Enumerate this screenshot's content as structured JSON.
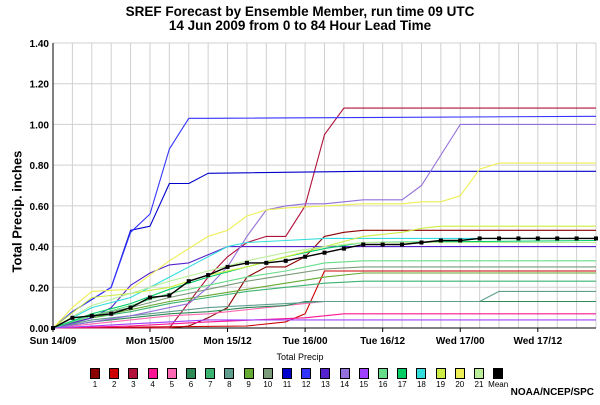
{
  "chart_data": {
    "type": "line",
    "title": "SREF Forecast by Ensemble Member, run time 09 UTC",
    "subtitle": "14 Jun 2009 from 0 to 84 Hour Lead Time",
    "ylabel": "Total Precip. inches",
    "xlabel": "",
    "legend_title": "Total Precip",
    "xlim": [
      0,
      84
    ],
    "ylim": [
      0,
      1.4
    ],
    "yticks": [
      "0.00",
      "0.20",
      "0.40",
      "0.60",
      "0.80",
      "1.00",
      "1.20",
      "1.40"
    ],
    "xticks": [
      {
        "h": 0,
        "label": "Sun 14/09"
      },
      {
        "h": 15,
        "label": "Mon 15/00"
      },
      {
        "h": 27,
        "label": "Mon 15/12"
      },
      {
        "h": 39,
        "label": "Tue 16/00"
      },
      {
        "h": 51,
        "label": "Tue 16/12"
      },
      {
        "h": 63,
        "label": "Wed 17/00"
      },
      {
        "h": 75,
        "label": "Wed 17/12"
      }
    ],
    "grid": true,
    "legend": "bottom",
    "series": [
      {
        "name": "1",
        "color": "#8b0000",
        "x": [
          0,
          6,
          12,
          18,
          21,
          24,
          27,
          30,
          33,
          36,
          39,
          42,
          45,
          48,
          51,
          54,
          57,
          60,
          84
        ],
        "values": [
          0,
          0,
          0,
          0,
          0.01,
          0.05,
          0.1,
          0.25,
          0.3,
          0.3,
          0.35,
          0.45,
          0.47,
          0.48,
          0.48,
          0.48,
          0.48,
          0.48,
          0.48
        ]
      },
      {
        "name": "2",
        "color": "#cc0000",
        "x": [
          0,
          30,
          36,
          39,
          42,
          45,
          48,
          84
        ],
        "values": [
          0,
          0.01,
          0.03,
          0.07,
          0.28,
          0.28,
          0.28,
          0.28
        ]
      },
      {
        "name": "3",
        "color": "#b0103a",
        "x": [
          0,
          18,
          24,
          27,
          30,
          33,
          36,
          39,
          42,
          45,
          48,
          84
        ],
        "values": [
          0,
          0,
          0.25,
          0.35,
          0.42,
          0.45,
          0.45,
          0.6,
          0.95,
          1.08,
          1.08,
          1.08
        ]
      },
      {
        "name": "4",
        "color": "#ff1493",
        "x": [
          0,
          12,
          18,
          24,
          39,
          42,
          45,
          84
        ],
        "values": [
          0,
          0.01,
          0.02,
          0.03,
          0.05,
          0.06,
          0.07,
          0.07
        ]
      },
      {
        "name": "5",
        "color": "#ff69b4",
        "x": [
          0,
          6,
          12,
          18,
          24,
          30,
          36,
          42,
          48,
          84
        ],
        "values": [
          0,
          0.02,
          0.04,
          0.06,
          0.07,
          0.09,
          0.11,
          0.13,
          0.13,
          0.13
        ]
      },
      {
        "name": "6",
        "color": "#2e8b57",
        "x": [
          0,
          6,
          12,
          18,
          24,
          30,
          36,
          39,
          42,
          84
        ],
        "values": [
          0,
          0.03,
          0.05,
          0.07,
          0.08,
          0.1,
          0.11,
          0.13,
          0.13,
          0.13
        ]
      },
      {
        "name": "7",
        "color": "#3cb371",
        "x": [
          0,
          6,
          12,
          18,
          24,
          30,
          36,
          42,
          48,
          84
        ],
        "values": [
          0,
          0.05,
          0.08,
          0.12,
          0.15,
          0.18,
          0.2,
          0.22,
          0.23,
          0.23
        ]
      },
      {
        "name": "8",
        "color": "#5f9e8f",
        "x": [
          0,
          6,
          12,
          18,
          24,
          30,
          36,
          42,
          66,
          69,
          72,
          84
        ],
        "values": [
          0,
          0.04,
          0.06,
          0.08,
          0.1,
          0.11,
          0.12,
          0.13,
          0.13,
          0.18,
          0.18,
          0.18
        ]
      },
      {
        "name": "9",
        "color": "#66aa33",
        "x": [
          0,
          6,
          12,
          18,
          24,
          30,
          36,
          42,
          48,
          84
        ],
        "values": [
          0,
          0.05,
          0.09,
          0.13,
          0.16,
          0.19,
          0.22,
          0.25,
          0.27,
          0.27
        ]
      },
      {
        "name": "10",
        "color": "#7a9a7a",
        "x": [
          0,
          6,
          12,
          18,
          24,
          30,
          36,
          42,
          48,
          84
        ],
        "values": [
          0,
          0.06,
          0.1,
          0.15,
          0.19,
          0.23,
          0.26,
          0.29,
          0.3,
          0.3
        ]
      },
      {
        "name": "11",
        "color": "#0000cc",
        "x": [
          0,
          3,
          6,
          9,
          12,
          15,
          18,
          21,
          24,
          48,
          84
        ],
        "values": [
          0,
          0.08,
          0.14,
          0.2,
          0.48,
          0.5,
          0.71,
          0.71,
          0.76,
          0.77,
          0.77
        ]
      },
      {
        "name": "12",
        "color": "#3333ff",
        "x": [
          0,
          3,
          6,
          9,
          12,
          15,
          18,
          21,
          24,
          84
        ],
        "values": [
          0,
          0.08,
          0.14,
          0.2,
          0.47,
          0.56,
          0.88,
          1.03,
          1.03,
          1.04
        ]
      },
      {
        "name": "13",
        "color": "#5522cc",
        "x": [
          0,
          6,
          9,
          12,
          15,
          18,
          21,
          24,
          27,
          84
        ],
        "values": [
          0,
          0.05,
          0.1,
          0.21,
          0.27,
          0.31,
          0.32,
          0.36,
          0.4,
          0.4
        ]
      },
      {
        "name": "14",
        "color": "#9370db",
        "x": [
          0,
          6,
          12,
          18,
          21,
          24,
          27,
          30,
          33,
          36,
          39,
          42,
          45,
          48,
          54,
          57,
          60,
          63,
          66,
          84
        ],
        "values": [
          0,
          0.03,
          0.06,
          0.1,
          0.12,
          0.2,
          0.3,
          0.45,
          0.58,
          0.6,
          0.61,
          0.61,
          0.62,
          0.63,
          0.63,
          0.7,
          0.85,
          1.0,
          1.0,
          1.0
        ]
      },
      {
        "name": "15",
        "color": "#a040ff",
        "x": [
          0,
          6,
          12,
          18,
          24,
          27,
          84
        ],
        "values": [
          0,
          0.01,
          0.02,
          0.03,
          0.04,
          0.04,
          0.04
        ]
      },
      {
        "name": "16",
        "color": "#66dd88",
        "x": [
          0,
          6,
          12,
          18,
          24,
          30,
          36,
          42,
          48,
          84
        ],
        "values": [
          0,
          0.06,
          0.11,
          0.17,
          0.21,
          0.25,
          0.28,
          0.32,
          0.33,
          0.33
        ]
      },
      {
        "name": "17",
        "color": "#00cc66",
        "x": [
          0,
          6,
          12,
          18,
          24,
          30,
          36,
          42,
          48,
          84
        ],
        "values": [
          0,
          0.07,
          0.12,
          0.19,
          0.25,
          0.3,
          0.35,
          0.39,
          0.42,
          0.43
        ]
      },
      {
        "name": "18",
        "color": "#33dddd",
        "x": [
          0,
          6,
          12,
          18,
          24,
          27,
          30,
          36,
          42,
          48,
          84
        ],
        "values": [
          0,
          0.1,
          0.15,
          0.25,
          0.35,
          0.4,
          0.42,
          0.43,
          0.44,
          0.44,
          0.44
        ]
      },
      {
        "name": "19",
        "color": "#ccee44",
        "x": [
          0,
          6,
          12,
          18,
          24,
          30,
          36,
          42,
          48,
          54,
          57,
          60,
          63,
          66,
          84
        ],
        "values": [
          0,
          0.15,
          0.17,
          0.2,
          0.26,
          0.3,
          0.35,
          0.4,
          0.45,
          0.47,
          0.49,
          0.5,
          0.5,
          0.5,
          0.5
        ]
      },
      {
        "name": "20",
        "color": "#eeee55",
        "x": [
          0,
          3,
          6,
          12,
          18,
          24,
          27,
          30,
          33,
          36,
          42,
          48,
          54,
          57,
          60,
          63,
          66,
          69,
          84
        ],
        "values": [
          0,
          0.1,
          0.18,
          0.19,
          0.33,
          0.45,
          0.48,
          0.55,
          0.58,
          0.59,
          0.6,
          0.61,
          0.61,
          0.62,
          0.62,
          0.65,
          0.78,
          0.81,
          0.81
        ]
      },
      {
        "name": "21",
        "color": "#bbee99",
        "x": [
          0,
          6,
          12,
          18,
          24,
          30,
          36,
          42,
          48,
          84
        ],
        "values": [
          0,
          0.11,
          0.17,
          0.23,
          0.28,
          0.33,
          0.37,
          0.4,
          0.42,
          0.42
        ]
      },
      {
        "name": "Mean",
        "color": "#000000",
        "x": [
          0,
          3,
          6,
          9,
          12,
          15,
          18,
          21,
          24,
          27,
          30,
          33,
          36,
          39,
          42,
          45,
          48,
          51,
          54,
          57,
          60,
          63,
          66,
          69,
          72,
          75,
          78,
          81,
          84
        ],
        "values": [
          0,
          0.05,
          0.06,
          0.07,
          0.1,
          0.15,
          0.16,
          0.23,
          0.26,
          0.3,
          0.32,
          0.32,
          0.33,
          0.35,
          0.37,
          0.39,
          0.41,
          0.41,
          0.41,
          0.42,
          0.43,
          0.43,
          0.44,
          0.44,
          0.44,
          0.44,
          0.44,
          0.44,
          0.44
        ]
      }
    ]
  },
  "credit": "NOAA/NCEP/SPC"
}
